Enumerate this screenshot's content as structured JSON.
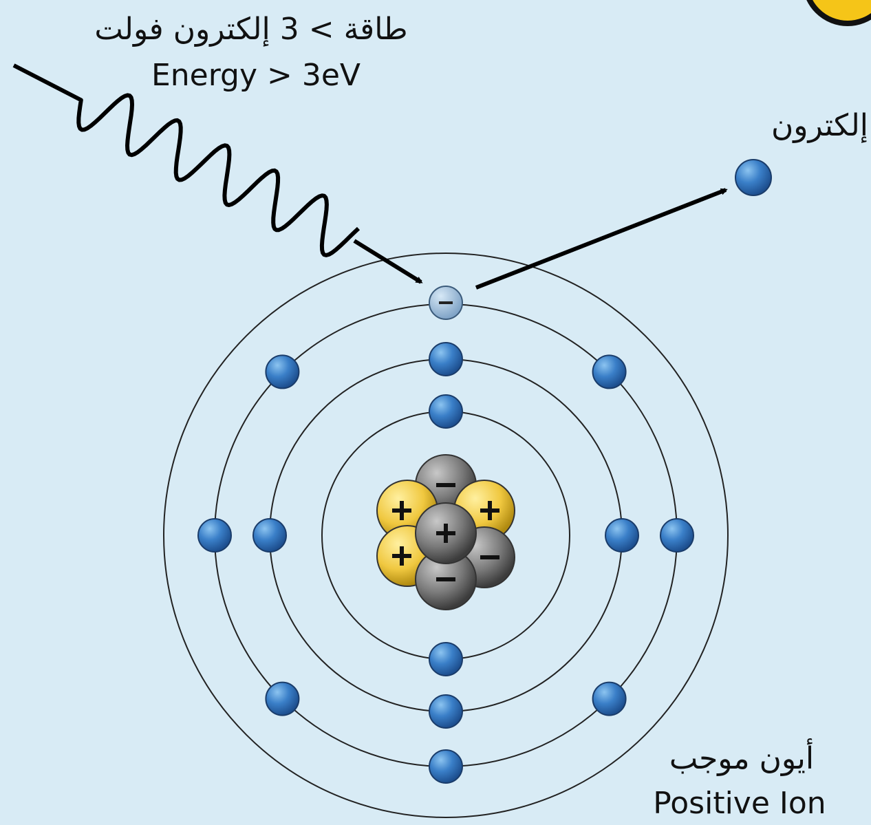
{
  "incoming": {
    "label_ar": "طاقة > 3 إلكترون فولت",
    "label_en": "Energy > 3eV"
  },
  "ejected_electron": {
    "label": "إلكترون"
  },
  "ion": {
    "label_ar": "أيون موجب",
    "label_en": "Positive Ion"
  }
}
